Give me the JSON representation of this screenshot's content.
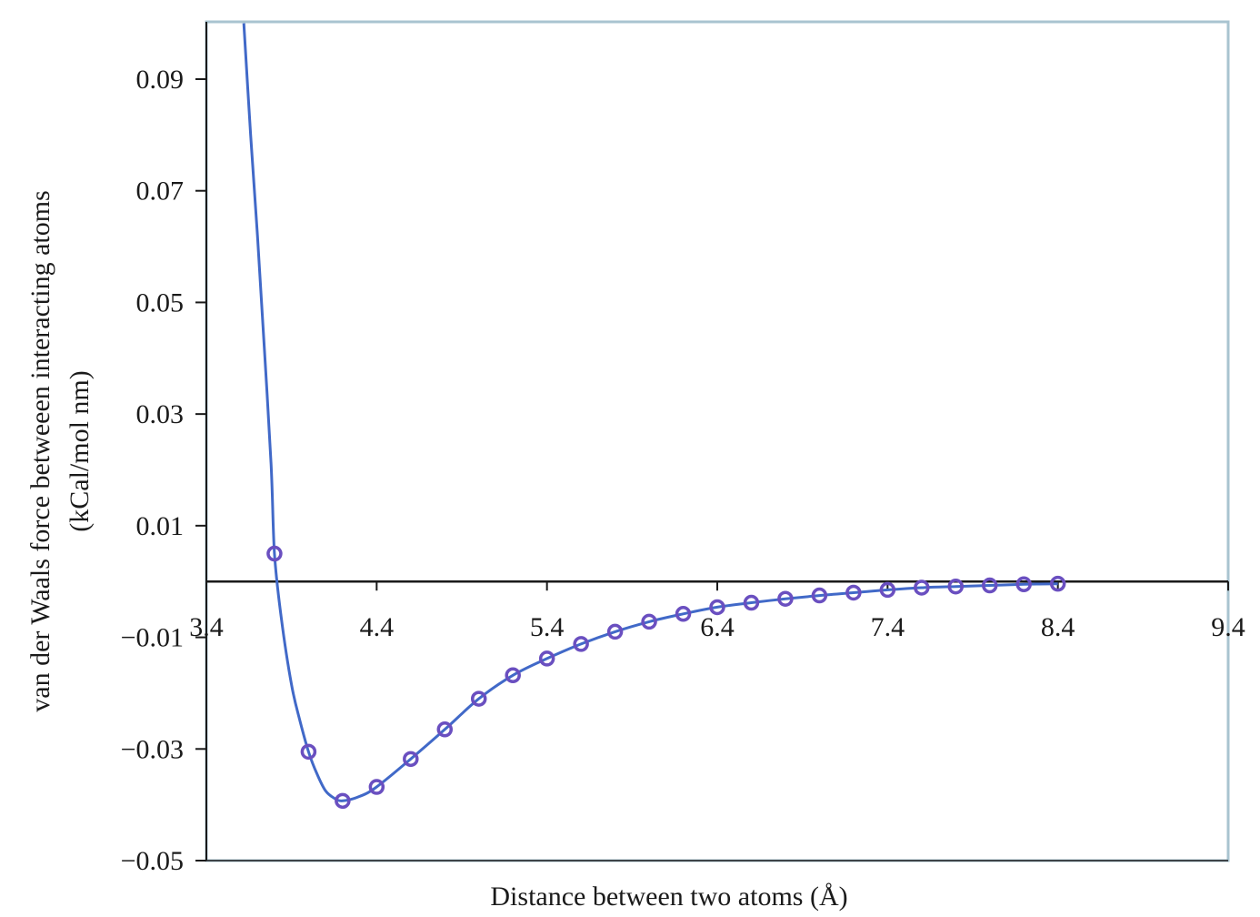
{
  "chart_data": {
    "type": "scatter",
    "title": "",
    "xlabel": "Distance between two atoms (Å)",
    "ylabel_lines": [
      "van der Waals force betweeen interacting atoms",
      "(kCal/mol nm)"
    ],
    "xlim": [
      3.4,
      9.4
    ],
    "ylim": [
      -0.05,
      0.1
    ],
    "x_ticks": [
      3.4,
      4.4,
      5.4,
      6.4,
      7.4,
      8.4,
      9.4
    ],
    "x_tick_labels": [
      "3.4",
      "4.4",
      "5.4",
      "6.4",
      "7.4",
      "8.4",
      "9.4"
    ],
    "y_ticks": [
      0.09,
      0.07,
      0.05,
      0.03,
      0.01,
      -0.01,
      -0.03,
      -0.05
    ],
    "y_tick_labels": [
      "0.09",
      "0.07",
      "0.05",
      "0.03",
      "0.01",
      "−0.01",
      "−0.03",
      "−0.05"
    ],
    "grid": false,
    "colors": {
      "series": "#4169c8",
      "marker": "#6a4fc0",
      "axis": "#1a1a1a",
      "frame": "#a9c4d0"
    },
    "series": [
      {
        "curve": [
          [
            3.62,
            0.1
          ],
          [
            3.66,
            0.08
          ],
          [
            3.7,
            0.062
          ],
          [
            3.74,
            0.042
          ],
          [
            3.78,
            0.021
          ],
          [
            3.8,
            0.005
          ],
          [
            3.84,
            -0.0065
          ],
          [
            3.9,
            -0.0185
          ],
          [
            3.95,
            -0.025
          ],
          [
            4.0,
            -0.0305
          ],
          [
            4.05,
            -0.0345
          ],
          [
            4.1,
            -0.0375
          ],
          [
            4.15,
            -0.0388
          ],
          [
            4.2,
            -0.0393
          ],
          [
            4.3,
            -0.0385
          ],
          [
            4.4,
            -0.0368
          ],
          [
            4.6,
            -0.0318
          ],
          [
            4.8,
            -0.0265
          ],
          [
            5.0,
            -0.021
          ],
          [
            5.2,
            -0.0168
          ],
          [
            5.4,
            -0.0138
          ],
          [
            5.6,
            -0.0112
          ],
          [
            5.8,
            -0.009
          ],
          [
            6.0,
            -0.0072
          ],
          [
            6.2,
            -0.0058
          ],
          [
            6.4,
            -0.0046
          ],
          [
            6.6,
            -0.0038
          ],
          [
            6.8,
            -0.0031
          ],
          [
            7.0,
            -0.0025
          ],
          [
            7.2,
            -0.002
          ],
          [
            7.4,
            -0.0015
          ],
          [
            7.6,
            -0.0011
          ],
          [
            7.8,
            -0.0009
          ],
          [
            8.0,
            -0.0007
          ],
          [
            8.2,
            -0.0005
          ],
          [
            8.4,
            -0.0004
          ]
        ],
        "points": [
          [
            3.8,
            0.005
          ],
          [
            4.0,
            -0.0305
          ],
          [
            4.2,
            -0.0393
          ],
          [
            4.4,
            -0.0368
          ],
          [
            4.6,
            -0.0318
          ],
          [
            4.8,
            -0.0265
          ],
          [
            5.0,
            -0.021
          ],
          [
            5.2,
            -0.0168
          ],
          [
            5.4,
            -0.0138
          ],
          [
            5.6,
            -0.0112
          ],
          [
            5.8,
            -0.009
          ],
          [
            6.0,
            -0.0072
          ],
          [
            6.2,
            -0.0058
          ],
          [
            6.4,
            -0.0046
          ],
          [
            6.6,
            -0.0038
          ],
          [
            6.8,
            -0.0031
          ],
          [
            7.0,
            -0.0025
          ],
          [
            7.2,
            -0.002
          ],
          [
            7.4,
            -0.0015
          ],
          [
            7.6,
            -0.0011
          ],
          [
            7.8,
            -0.0009
          ],
          [
            8.0,
            -0.0007
          ],
          [
            8.2,
            -0.0005
          ],
          [
            8.4,
            -0.0004
          ]
        ]
      }
    ]
  }
}
